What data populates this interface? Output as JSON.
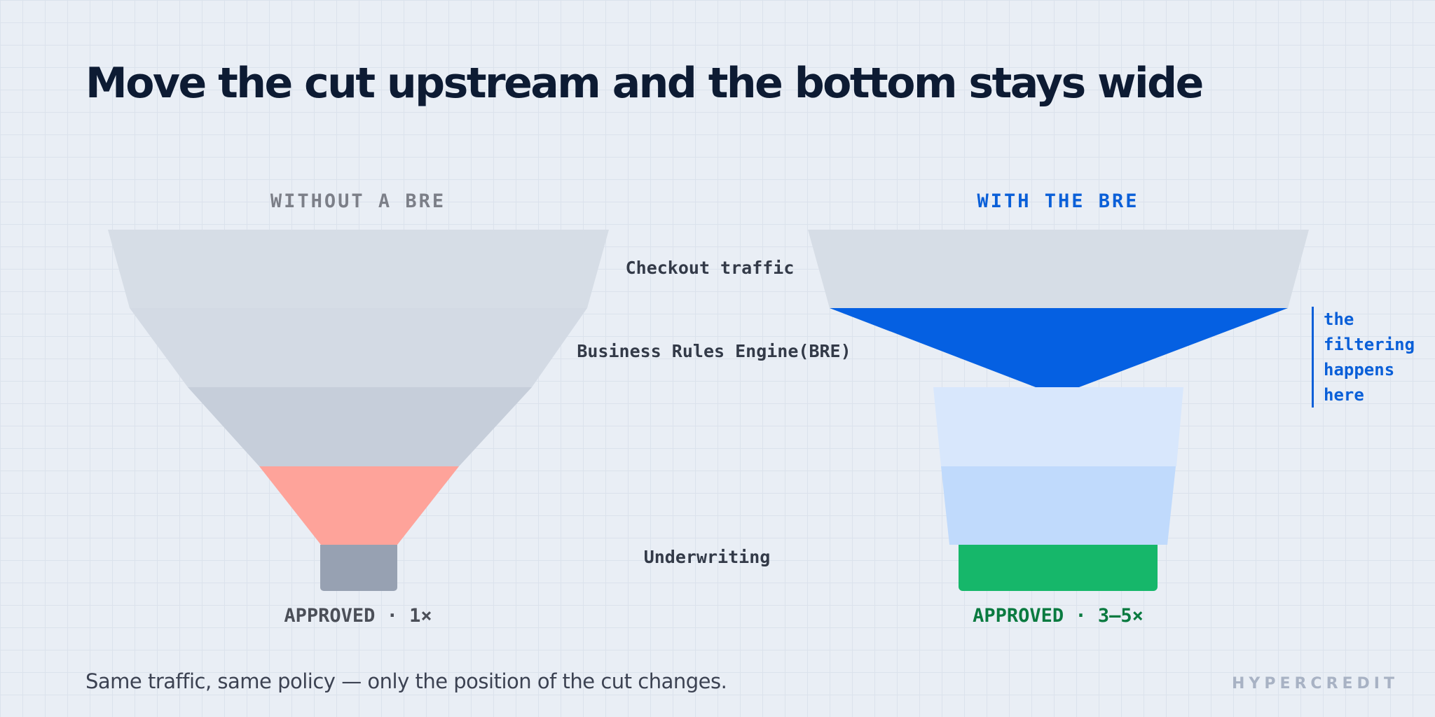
{
  "title": "Move the cut upstream and the bottom stays wide",
  "columns": {
    "left_heading": "WITHOUT A BRE",
    "right_heading": "WITH THE BRE"
  },
  "stages": {
    "checkout": "Checkout traffic",
    "bre": "Business Rules Engine(BRE)",
    "underwriting": "Underwriting"
  },
  "results": {
    "left": "APPROVED · 1×",
    "right": "APPROVED · 3–5×"
  },
  "annotation": {
    "lines": [
      "the",
      "filtering",
      "happens",
      "here"
    ]
  },
  "footer": "Same traffic, same policy — only the position of the cut changes.",
  "brand": "HYPERCREDIT",
  "colors": {
    "background": "#e9eef5",
    "funnel_gray_1": "#d6dde6",
    "funnel_gray_2": "#d3dae4",
    "funnel_gray_3": "#c6ceda",
    "reject_salmon": "#fea39a",
    "approved_gray": "#97a1b2",
    "bre_blue": "#0560e2",
    "light_blue_1": "#d8e7fc",
    "light_blue_2": "#c0dafc",
    "approved_green": "#16b76a",
    "accent_blue": "#0a5fd8"
  }
}
